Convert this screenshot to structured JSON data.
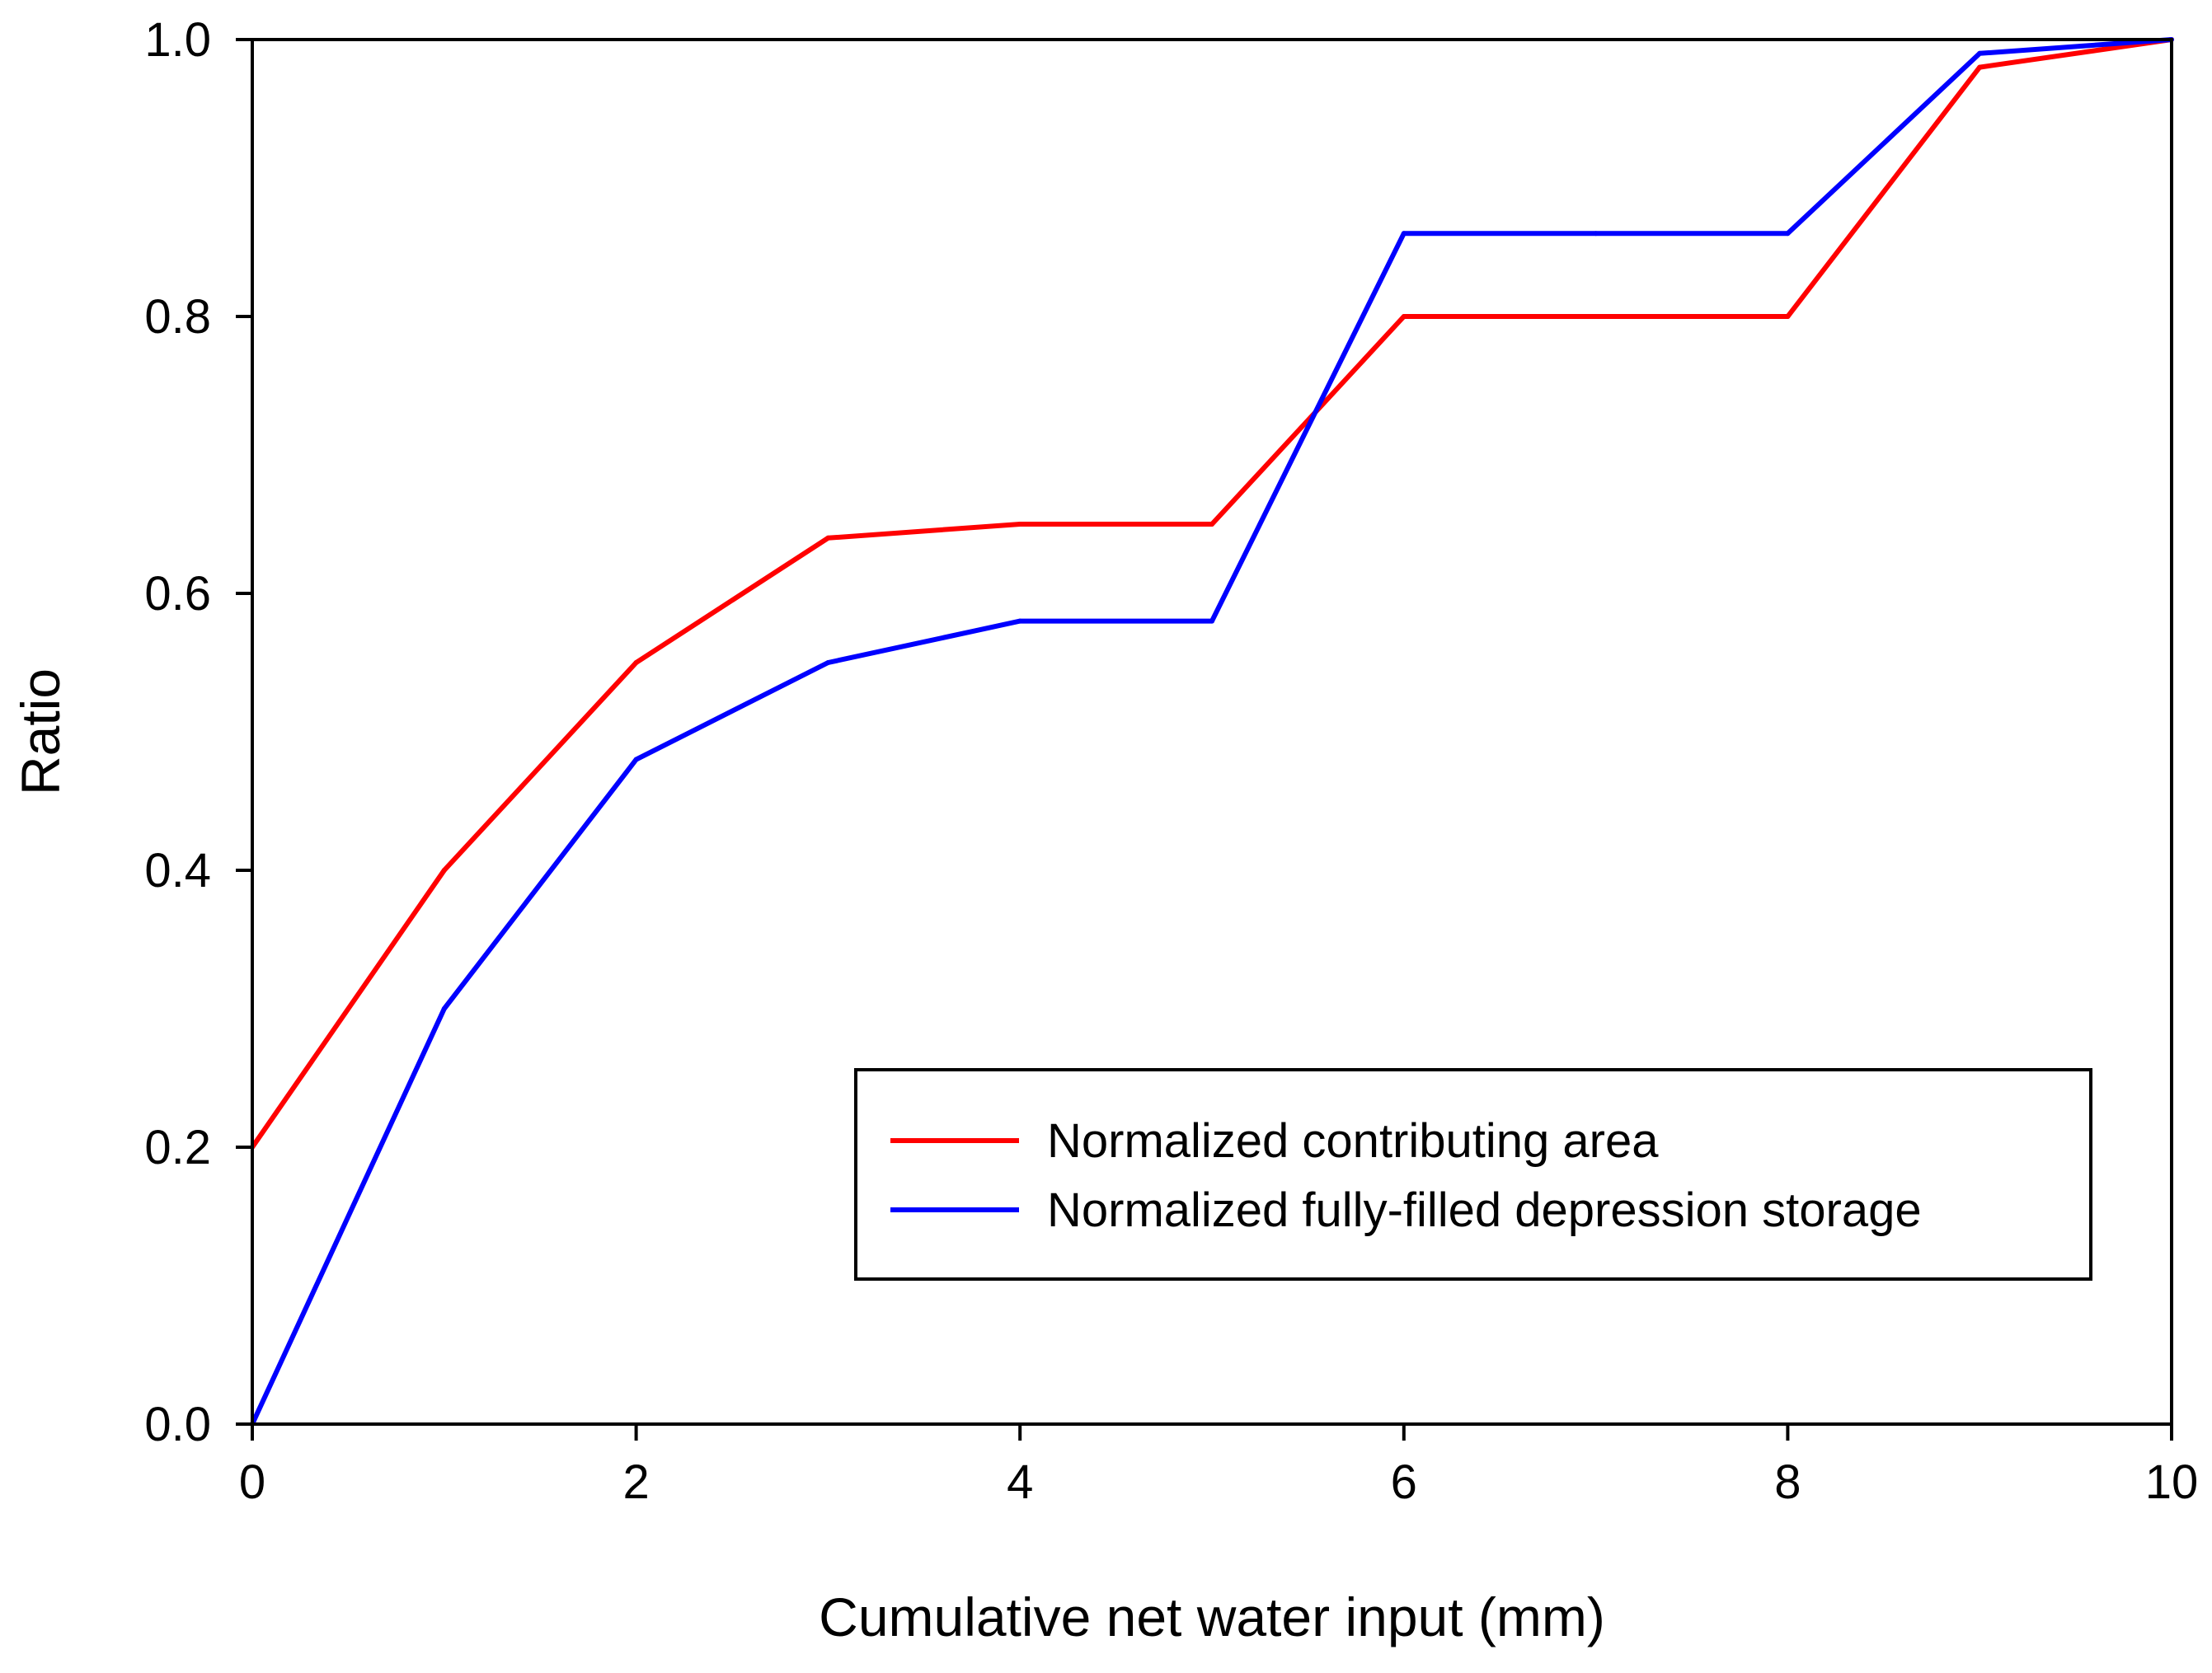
{
  "chart_data": {
    "type": "line",
    "title": "",
    "xlabel": "Cumulative net water input (mm)",
    "ylabel": "Ratio",
    "xlim": [
      0,
      10
    ],
    "ylim": [
      0,
      1.0
    ],
    "x_ticks": [
      0,
      2,
      4,
      6,
      8,
      10
    ],
    "x_tick_labels": [
      "0",
      "2",
      "4",
      "6",
      "8",
      "10"
    ],
    "y_ticks": [
      0,
      0.2,
      0.4,
      0.6,
      0.8,
      1.0
    ],
    "y_tick_labels": [
      "0.0",
      "0.2",
      "0.4",
      "0.6",
      "0.8",
      "1.0"
    ],
    "grid": false,
    "legend_position": "lower-right",
    "series": [
      {
        "name": "Normalized contributing area",
        "color": "#ff0000",
        "x": [
          0,
          1,
          2,
          3,
          4,
          5,
          6,
          7,
          8,
          9,
          10
        ],
        "y": [
          0.2,
          0.4,
          0.55,
          0.64,
          0.65,
          0.65,
          0.8,
          0.8,
          0.8,
          0.98,
          1.0
        ]
      },
      {
        "name": "Normalized fully-filled depression storage",
        "color": "#0000ff",
        "x": [
          0,
          1,
          2,
          3,
          4,
          5,
          6,
          7,
          8,
          9,
          10
        ],
        "y": [
          0.0,
          0.3,
          0.48,
          0.55,
          0.58,
          0.58,
          0.86,
          0.86,
          0.86,
          0.99,
          1.0
        ]
      }
    ]
  }
}
